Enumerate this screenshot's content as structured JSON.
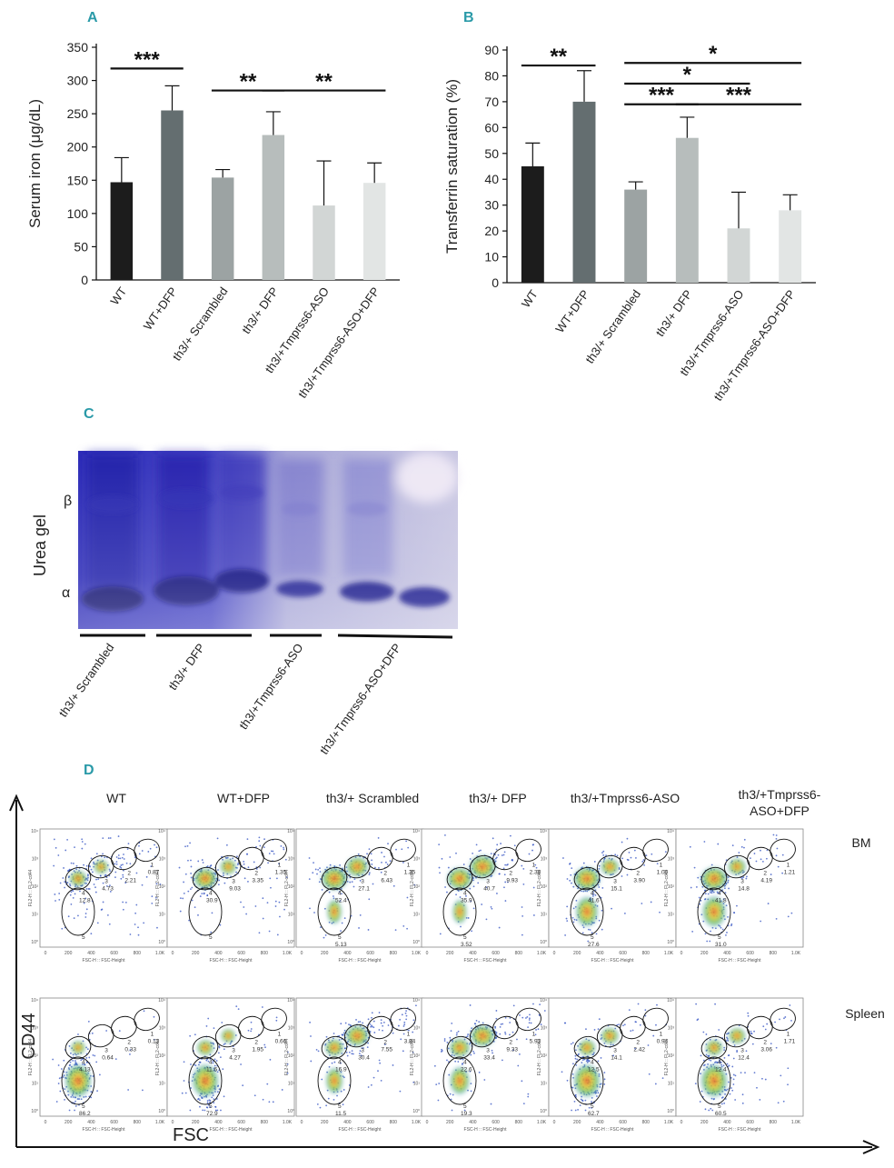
{
  "panels": {
    "A": "A",
    "B": "B",
    "C": "C",
    "D": "D"
  },
  "chart_data": [
    {
      "type": "bar",
      "title": "",
      "ylabel": "Serum iron (μg/dL)",
      "xlabel": "",
      "ylim": [
        0,
        350
      ],
      "yticks": [
        "0",
        "50",
        "100",
        "150",
        "200",
        "250",
        "300",
        "350"
      ],
      "categories": [
        "WT",
        "WT+DFP",
        "th3/+ Scrambled",
        "th3/+ DFP",
        "th3/+Tmprss6-ASO",
        "th3/+Tmprss6-ASO+DFP"
      ],
      "values": [
        147,
        255,
        154,
        218,
        112,
        146
      ],
      "errors": [
        37,
        37,
        12,
        35,
        67,
        30
      ],
      "colors": [
        "#1c1c1c",
        "#646e70",
        "#9ca3a3",
        "#b7bdbc",
        "#d2d6d5",
        "#e2e5e4"
      ],
      "significance": [
        {
          "from": 0,
          "to": 1,
          "label": "***",
          "y": 318
        },
        {
          "from": 2,
          "to": 3,
          "label": "**",
          "y": 285
        },
        {
          "from": 3,
          "to": 5,
          "label": "**",
          "y": 285
        }
      ]
    },
    {
      "type": "bar",
      "title": "",
      "ylabel": "Transferrin saturation (%)",
      "xlabel": "",
      "ylim": [
        0,
        90
      ],
      "yticks": [
        "0",
        "10",
        "20",
        "30",
        "40",
        "50",
        "60",
        "70",
        "80",
        "90"
      ],
      "categories": [
        "WT",
        "WT+DFP",
        "th3/+ Scrambled",
        "th3/+ DFP",
        "th3/+Tmprss6-ASO",
        "th3/+Tmprss6-ASO+DFP"
      ],
      "values": [
        45,
        70,
        36,
        56,
        21,
        28
      ],
      "errors": [
        9,
        12,
        3,
        8,
        14,
        6
      ],
      "colors": [
        "#1c1c1c",
        "#646e70",
        "#9ca3a3",
        "#b7bdbc",
        "#d2d6d5",
        "#e2e5e4"
      ],
      "significance": [
        {
          "from": 0,
          "to": 1,
          "label": "**",
          "y": 84
        },
        {
          "from": 2,
          "to": 5,
          "label": "*",
          "y": 85
        },
        {
          "from": 2,
          "to": 4,
          "label": "*",
          "y": 77
        },
        {
          "from": 2,
          "to": 3,
          "label": "***",
          "y": 69
        },
        {
          "from": 3,
          "to": 5,
          "label": "***",
          "y": 69
        }
      ]
    }
  ],
  "gel": {
    "ylabel": "Urea gel",
    "beta": "β",
    "alpha": "α",
    "groups": [
      "th3/+ Scrambled",
      "th3/+ DFP",
      "th3/+Tmprss6-ASO",
      "th3/+Tmprss6-ASO+DFP"
    ]
  },
  "flow": {
    "columns": [
      "WT",
      "WT+DFP",
      "th3/+ Scrambled",
      "th3/+ DFP",
      "th3/+Tmprss6-ASO",
      "th3/+Tmprss6-\nASO+DFP"
    ],
    "rows": [
      "BM",
      "Spleen"
    ],
    "yaxis": "CD44",
    "xaxis": "FSC",
    "subplot_xlabel": "FSC-H :: FSC-Height",
    "subplot_ylabel": "FL2-H :: FL2-cd44",
    "xticks": [
      "0",
      "200",
      "400",
      "600",
      "800",
      "1.0K"
    ],
    "yticks": [
      "10⁰",
      "10¹",
      "10²",
      "10³",
      "10⁴"
    ],
    "gate_labels": [
      "1",
      "2",
      "3",
      "4",
      "5"
    ],
    "gate_values": [
      [
        [
          "0.87",
          "2.21",
          "4.73",
          "12.8",
          ""
        ],
        [
          "1.35",
          "3.35",
          "9.03",
          "30.9",
          ""
        ],
        [
          "1.35",
          "6.43",
          "27.1",
          "52.4",
          "5.13"
        ],
        [
          "2.38",
          "9.93",
          "40.7",
          "35.9",
          "3.52"
        ],
        [
          "1.00",
          "3.90",
          "15.1",
          "41.6",
          "27.6"
        ],
        [
          "1.21",
          "4.19",
          "14.8",
          "41.8",
          "31.0"
        ]
      ],
      [
        [
          "0.13",
          "0.33",
          "0.64",
          "4.13",
          "86.2"
        ],
        [
          "0.66",
          "1.95",
          "4.27",
          "11.6",
          "72.9"
        ],
        [
          "3.84",
          "7.55",
          "30.4",
          "16.9",
          "11.5"
        ],
        [
          "5.93",
          "9.33",
          "33.4",
          "22.6",
          "19.3"
        ],
        [
          "0.94",
          "2.42",
          "14.1",
          "12.5",
          "62.7"
        ],
        [
          "1.71",
          "3.06",
          "12.4",
          "12.4",
          "60.5"
        ]
      ]
    ]
  }
}
